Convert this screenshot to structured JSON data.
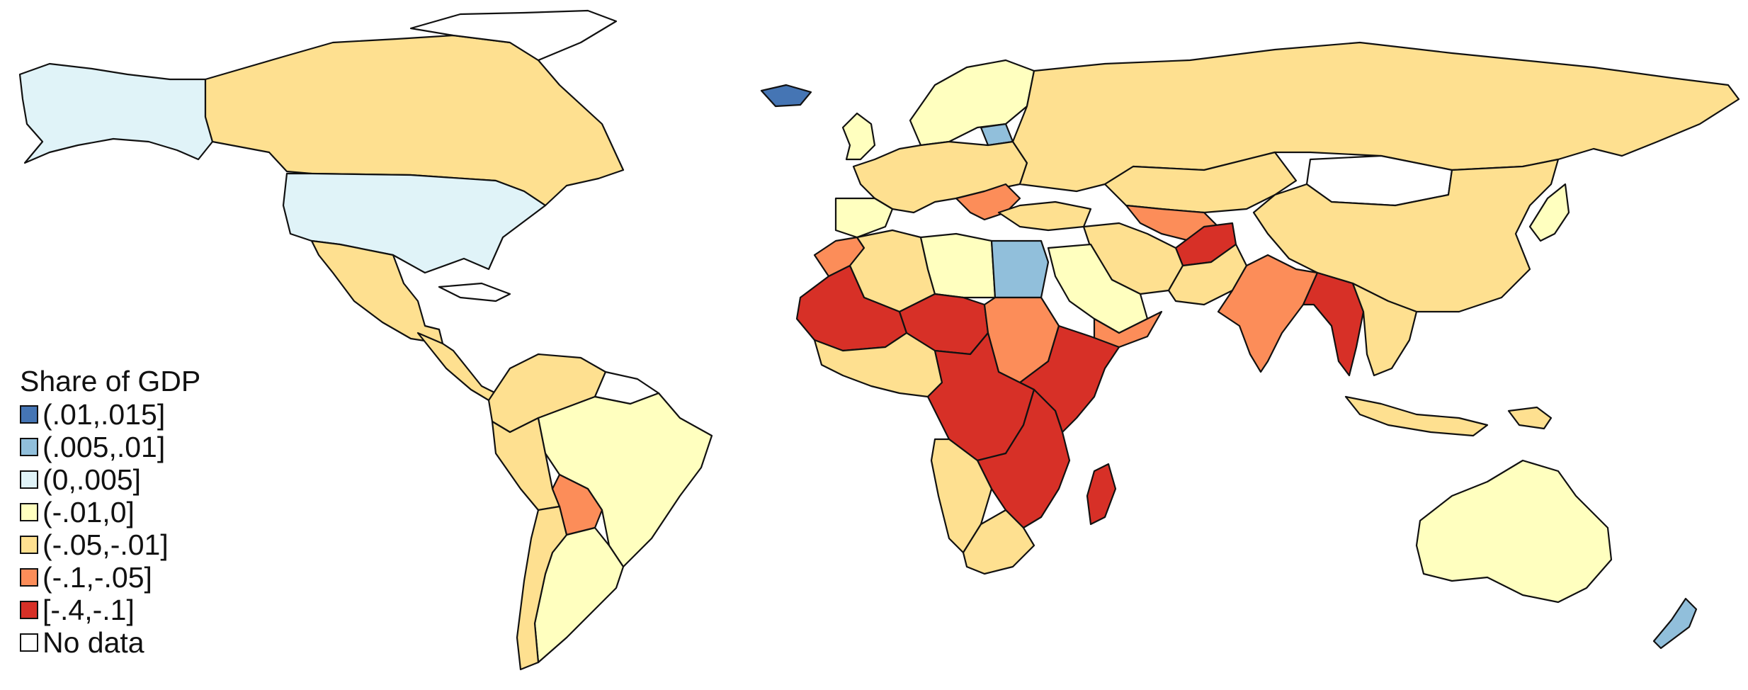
{
  "legend": {
    "title": "Share of GDP",
    "items": [
      {
        "label": "(.01,.015]",
        "color": "#4575b4"
      },
      {
        "label": "(.005,.01]",
        "color": "#91bfdb"
      },
      {
        "label": "(0,.005]",
        "color": "#e0f3f8"
      },
      {
        "label": "(-.01,0]",
        "color": "#ffffbf"
      },
      {
        "label": "(-.05,-.01]",
        "color": "#fee090"
      },
      {
        "label": "(-.1,-.05]",
        "color": "#fc8d59"
      },
      {
        "label": "[-.4,-.1]",
        "color": "#d73027"
      },
      {
        "label": "No data",
        "color": "#ffffff"
      }
    ]
  },
  "regions": [
    {
      "name": "alaska",
      "class": "(0,.005]"
    },
    {
      "name": "canada",
      "class": "(-.05,-.01]"
    },
    {
      "name": "greenland",
      "class": "No data"
    },
    {
      "name": "usa",
      "class": "(0,.005]"
    },
    {
      "name": "mexico",
      "class": "(-.05,-.01]"
    },
    {
      "name": "central-america",
      "class": "(-.05,-.01]"
    },
    {
      "name": "cuba",
      "class": "No data"
    },
    {
      "name": "colombia-venezuela",
      "class": "(-.05,-.01]"
    },
    {
      "name": "guyanas",
      "class": "No data"
    },
    {
      "name": "brazil",
      "class": "(-.01,0]"
    },
    {
      "name": "peru",
      "class": "(-.05,-.01]"
    },
    {
      "name": "bolivia",
      "class": "(-.1,-.05]"
    },
    {
      "name": "southern-cone",
      "class": "(-.01,0]"
    },
    {
      "name": "chile",
      "class": "(-.05,-.01]"
    },
    {
      "name": "iceland",
      "class": "(.01,.015]"
    },
    {
      "name": "uk",
      "class": "(-.01,0]"
    },
    {
      "name": "scandinavia",
      "class": "(-.01,0]"
    },
    {
      "name": "baltic",
      "class": "(.005,.01]"
    },
    {
      "name": "western-europe",
      "class": "(-.05,-.01]"
    },
    {
      "name": "iberia",
      "class": "(-.01,0]"
    },
    {
      "name": "balkans",
      "class": "(-.1,-.05]"
    },
    {
      "name": "russia",
      "class": "(-.05,-.01]"
    },
    {
      "name": "turkey",
      "class": "(-.05,-.01]"
    },
    {
      "name": "kazakhstan",
      "class": "(-.05,-.01]"
    },
    {
      "name": "mongolia",
      "class": "No data"
    },
    {
      "name": "china",
      "class": "(-.05,-.01]"
    },
    {
      "name": "central-asia",
      "class": "(-.1,-.05]"
    },
    {
      "name": "afghanistan",
      "class": "[-.4,-.1]"
    },
    {
      "name": "iran",
      "class": "(-.05,-.01]"
    },
    {
      "name": "pakistan",
      "class": "(-.05,-.01]"
    },
    {
      "name": "india",
      "class": "(-.1,-.05]"
    },
    {
      "name": "myanmar-bangladesh",
      "class": "[-.4,-.1]"
    },
    {
      "name": "se-asia",
      "class": "(-.05,-.01]"
    },
    {
      "name": "arabia",
      "class": "(-.01,0]"
    },
    {
      "name": "yemen-oman",
      "class": "(-.1,-.05]"
    },
    {
      "name": "morocco",
      "class": "(-.1,-.05]"
    },
    {
      "name": "algeria",
      "class": "(-.05,-.01]"
    },
    {
      "name": "libya",
      "class": "(-.01,0]"
    },
    {
      "name": "egypt",
      "class": "(.005,.01]"
    },
    {
      "name": "sahel-west",
      "class": "[-.4,-.1]"
    },
    {
      "name": "niger",
      "class": "[-.4,-.1]"
    },
    {
      "name": "sudan",
      "class": "(-.1,-.05]"
    },
    {
      "name": "horn-of-africa",
      "class": "[-.4,-.1]"
    },
    {
      "name": "west-coast-africa",
      "class": "(-.05,-.01]"
    },
    {
      "name": "central-africa",
      "class": "[-.4,-.1]"
    },
    {
      "name": "east-africa",
      "class": "[-.4,-.1]"
    },
    {
      "name": "angola-namibia",
      "class": "(-.05,-.01]"
    },
    {
      "name": "southern-africa",
      "class": "(-.05,-.01]"
    },
    {
      "name": "madagascar",
      "class": "[-.4,-.1]"
    },
    {
      "name": "japan",
      "class": "(-.01,0]"
    },
    {
      "name": "indonesia",
      "class": "(-.05,-.01]"
    },
    {
      "name": "png",
      "class": "(-.05,-.01]"
    },
    {
      "name": "australia",
      "class": "(-.01,0]"
    },
    {
      "name": "new-zealand",
      "class": "(.005,.01]"
    }
  ]
}
